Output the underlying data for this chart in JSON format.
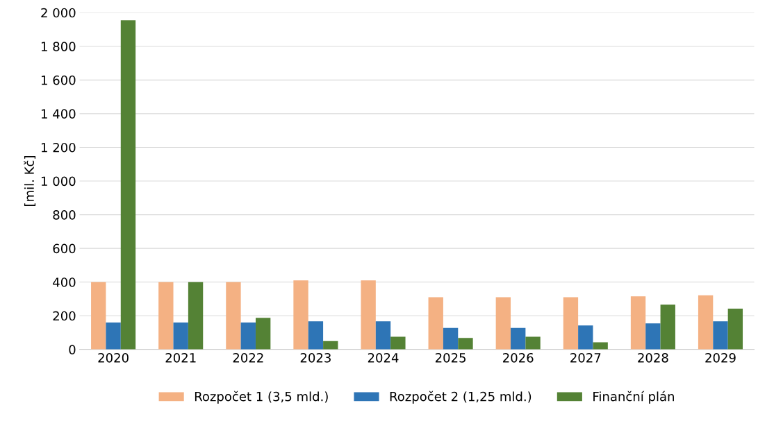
{
  "chart_data": {
    "type": "bar",
    "ylabel": "[mil. Kč]",
    "categories": [
      "2020",
      "2021",
      "2022",
      "2023",
      "2024",
      "2025",
      "2026",
      "2027",
      "2028",
      "2029"
    ],
    "series": [
      {
        "name": "Rozpočet 1 (3,5 mld.)",
        "color": "#f4b183",
        "values": [
          400,
          400,
          400,
          410,
          410,
          310,
          310,
          310,
          315,
          322
        ]
      },
      {
        "name": "Rozpočet 2 (1,25 mld.)",
        "color": "#2e75b6",
        "values": [
          160,
          160,
          160,
          167,
          167,
          128,
          128,
          142,
          155,
          167
        ]
      },
      {
        "name": "Finanční plán",
        "color": "#548235",
        "values": [
          1955,
          400,
          188,
          50,
          75,
          68,
          75,
          42,
          266,
          242
        ]
      }
    ],
    "ylim": [
      0,
      2000
    ],
    "yticks": [
      0,
      200,
      400,
      600,
      800,
      {
        "value": 1000,
        "label": "1 000"
      },
      {
        "value": 1200,
        "label": "1 200"
      },
      {
        "value": 1400,
        "label": "1 400"
      },
      {
        "value": 1600,
        "label": "1 600"
      },
      {
        "value": 1800,
        "label": "1 800"
      },
      {
        "value": 2000,
        "label": "2 000"
      }
    ],
    "grid": "y",
    "legend": "bottom"
  }
}
